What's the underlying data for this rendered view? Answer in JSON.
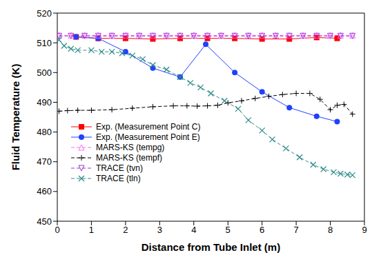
{
  "chart_data": {
    "type": "line",
    "xlabel": "Distance from Tube Inlet (m)",
    "ylabel": "Fluid Temperature (K)",
    "xlim": [
      0,
      9
    ],
    "xticks": [
      0,
      1,
      2,
      3,
      4,
      5,
      6,
      7,
      8,
      9
    ],
    "ylim": [
      450,
      520
    ],
    "yticks": [
      450,
      460,
      470,
      480,
      490,
      500,
      510,
      520
    ],
    "grid": false,
    "legend": "lower left",
    "series": [
      {
        "name": "Exp. (Measurement Point C)",
        "color": "#ff0000",
        "marker": "square",
        "line_style": "solid",
        "x": [
          0.55,
          1.2,
          2.0,
          2.8,
          3.6,
          4.4,
          5.2,
          6.0,
          6.8,
          7.6,
          8.2
        ],
        "values": [
          512,
          511.5,
          511.5,
          511.3,
          511.5,
          511.5,
          511.5,
          511.3,
          511.3,
          511.8,
          511.5
        ]
      },
      {
        "name": "Exp. (Measurement Point E)",
        "color": "#2040ff",
        "marker": "circle",
        "line_style": "solid",
        "x": [
          0.55,
          1.2,
          2.0,
          2.8,
          3.6,
          4.35,
          5.2,
          6.0,
          6.8,
          7.6,
          8.2
        ],
        "values": [
          512,
          511.5,
          507,
          501.5,
          498.5,
          509.5,
          500,
          493.5,
          488.2,
          485.3,
          483.5
        ]
      },
      {
        "name": "MARS-KS (tempg)",
        "color": "#ff66ff",
        "marker": "triangle",
        "line_style": "dashed",
        "x": [
          0.05,
          0.4,
          0.8,
          1.2,
          1.6,
          2.0,
          2.4,
          2.8,
          3.2,
          3.6,
          4.0,
          4.4,
          4.8,
          5.2,
          5.6,
          6.0,
          6.4,
          6.8,
          7.2,
          7.6,
          8.0,
          8.3,
          8.65
        ],
        "values": [
          512.5,
          512.5,
          512.5,
          512.5,
          512.5,
          512.5,
          512.5,
          512.5,
          512.5,
          512.5,
          512.5,
          512.5,
          512.5,
          512.5,
          512.5,
          512.5,
          512.5,
          512.5,
          512.5,
          512.5,
          512.5,
          512.5,
          512.5
        ]
      },
      {
        "name": "MARS-KS (tempf)",
        "color": "#000000",
        "marker": "plus",
        "line_style": "dashed",
        "x": [
          0.05,
          0.3,
          0.6,
          1.0,
          1.6,
          2.2,
          2.8,
          3.4,
          3.8,
          4.1,
          4.4,
          4.7,
          5.0,
          5.4,
          5.8,
          6.2,
          6.6,
          7.0,
          7.4,
          7.7,
          8.0,
          8.2,
          8.4,
          8.65
        ],
        "values": [
          487,
          487.2,
          487.3,
          487.3,
          487.5,
          488,
          488.5,
          488.8,
          488.8,
          488.7,
          488.8,
          489,
          489.8,
          490.5,
          491.3,
          492,
          492.6,
          493,
          493,
          491,
          487.5,
          489,
          489.3,
          486
        ]
      },
      {
        "name": "TRACE (tvn)",
        "color": "#9933cc",
        "marker": "triangle-down",
        "line_style": "dashed",
        "x": [
          0.05,
          0.4,
          0.8,
          1.2,
          1.6,
          2.0,
          2.4,
          2.8,
          3.2,
          3.6,
          4.0,
          4.4,
          4.8,
          5.2,
          5.6,
          6.0,
          6.4,
          6.8,
          7.2,
          7.6,
          8.0,
          8.3,
          8.65
        ],
        "values": [
          512.3,
          512.3,
          512.3,
          512.3,
          512.3,
          512.3,
          512.3,
          512.3,
          512.3,
          512.3,
          512.3,
          512.3,
          512.3,
          512.3,
          512.3,
          512.3,
          512.3,
          512.3,
          512.3,
          512.3,
          512.3,
          512.3,
          512.3
        ]
      },
      {
        "name": "TRACE (tln)",
        "color": "#2e8b8b",
        "marker": "x",
        "line_style": "dashed",
        "x": [
          0.05,
          0.2,
          0.4,
          0.6,
          1.0,
          1.3,
          1.6,
          1.9,
          2.2,
          2.5,
          2.8,
          3.2,
          3.6,
          3.9,
          4.2,
          4.5,
          4.9,
          5.3,
          5.6,
          6.0,
          6.3,
          6.7,
          7.1,
          7.5,
          7.8,
          8.1,
          8.3,
          8.5,
          8.65
        ],
        "values": [
          511,
          509,
          508,
          507.5,
          507.5,
          507,
          507,
          506.5,
          505.7,
          504.5,
          502.5,
          501,
          498.5,
          496.5,
          495,
          493,
          490.5,
          487.8,
          484,
          480.5,
          477.5,
          474.5,
          471.5,
          469,
          467.5,
          466.5,
          466,
          465.7,
          465.5
        ]
      }
    ]
  }
}
